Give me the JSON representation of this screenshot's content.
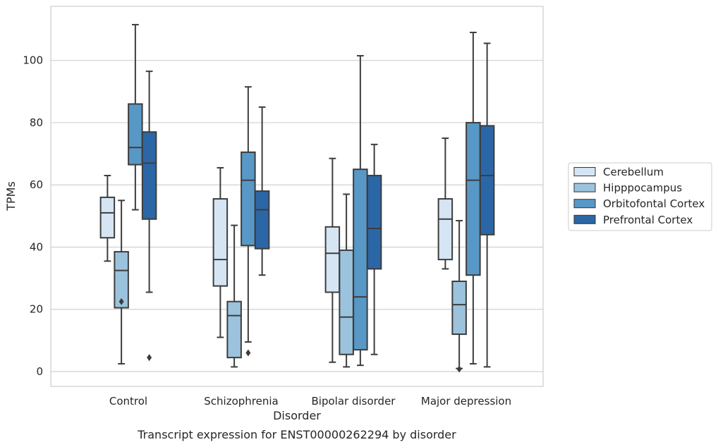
{
  "chart_data": {
    "type": "box",
    "title": "",
    "caption": "Transcript expression for ENST00000262294 by disorder",
    "xlabel": "Disorder",
    "ylabel": "TPMs",
    "ylim": [
      -4.5,
      118
    ],
    "yticks": [
      0,
      20,
      40,
      60,
      80,
      100
    ],
    "grid": "horizontal",
    "legend_position": "right",
    "categories": [
      "Control",
      "Schizophrenia",
      "Bipolar disorder",
      "Major depression"
    ],
    "series": [
      {
        "name": "Cerebellum",
        "color": "#d6e5f3",
        "boxes": [
          {
            "whisker_low": 35.5,
            "q1": 43,
            "median": 51,
            "q3": 56,
            "whisker_high": 63,
            "outliers": []
          },
          {
            "whisker_low": 11,
            "q1": 27.5,
            "median": 36,
            "q3": 55.5,
            "whisker_high": 65.5,
            "outliers": []
          },
          {
            "whisker_low": 3,
            "q1": 25.5,
            "median": 38,
            "q3": 46.5,
            "whisker_high": 68.5,
            "outliers": []
          },
          {
            "whisker_low": 33,
            "q1": 36,
            "median": 49,
            "q3": 55.5,
            "whisker_high": 75,
            "outliers": []
          }
        ]
      },
      {
        "name": "Hipppocampus",
        "color": "#9cc3dd",
        "boxes": [
          {
            "whisker_low": 2.5,
            "q1": 20.5,
            "median": 32.5,
            "q3": 38.5,
            "whisker_high": 55,
            "outliers": [
              22.5
            ]
          },
          {
            "whisker_low": 1.5,
            "q1": 4.5,
            "median": 18,
            "q3": 22.5,
            "whisker_high": 47,
            "outliers": []
          },
          {
            "whisker_low": 1.5,
            "q1": 5.5,
            "median": 17.5,
            "q3": 39,
            "whisker_high": 57,
            "outliers": []
          },
          {
            "whisker_low": 1,
            "q1": 12,
            "median": 21.5,
            "q3": 29,
            "whisker_high": 48.5,
            "outliers": [
              0.8
            ]
          }
        ]
      },
      {
        "name": "Orbitofontal Cortex",
        "color": "#5898c6",
        "boxes": [
          {
            "whisker_low": 52,
            "q1": 66.5,
            "median": 72,
            "q3": 86,
            "whisker_high": 111.5,
            "outliers": []
          },
          {
            "whisker_low": 9.5,
            "q1": 40.5,
            "median": 61.5,
            "q3": 70.5,
            "whisker_high": 91.5,
            "outliers": [
              6
            ]
          },
          {
            "whisker_low": 2,
            "q1": 7,
            "median": 24,
            "q3": 65,
            "whisker_high": 101.5,
            "outliers": []
          },
          {
            "whisker_low": 2.5,
            "q1": 31,
            "median": 61.5,
            "q3": 80,
            "whisker_high": 109,
            "outliers": []
          }
        ]
      },
      {
        "name": "Prefrontal Cortex",
        "color": "#2b67a6",
        "boxes": [
          {
            "whisker_low": 25.5,
            "q1": 49,
            "median": 67,
            "q3": 77,
            "whisker_high": 96.5,
            "outliers": [
              4.5
            ]
          },
          {
            "whisker_low": 31,
            "q1": 39.5,
            "median": 52,
            "q3": 58,
            "whisker_high": 85,
            "outliers": []
          },
          {
            "whisker_low": 5.5,
            "q1": 33,
            "median": 46,
            "q3": 63,
            "whisker_high": 73,
            "outliers": []
          },
          {
            "whisker_low": 1.5,
            "q1": 44,
            "median": 63,
            "q3": 79,
            "whisker_high": 105.5,
            "outliers": []
          }
        ]
      }
    ]
  }
}
